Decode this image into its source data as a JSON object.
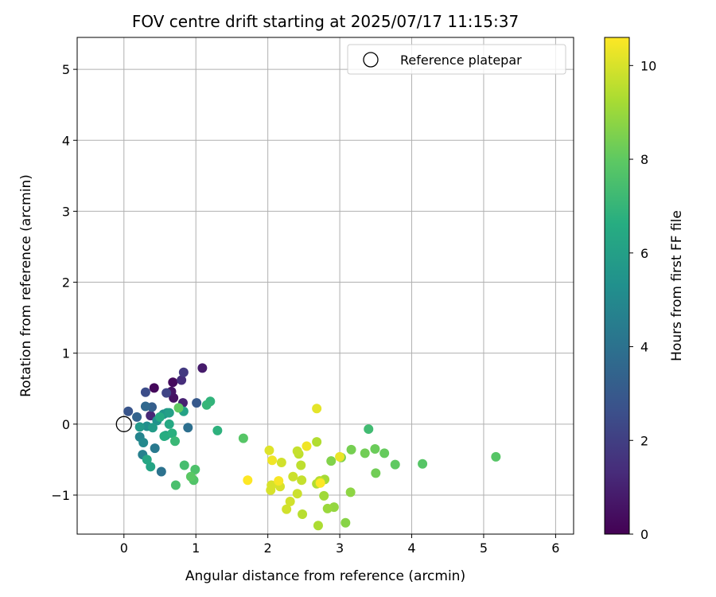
{
  "chart_data": {
    "type": "scatter",
    "title": "FOV centre drift starting at 2025/07/17 11:15:37",
    "xlabel": "Angular distance from reference (arcmin)",
    "ylabel": "Rotation from reference (arcmin)",
    "xlim": [
      -0.65,
      6.25
    ],
    "ylim": [
      -1.55,
      5.45
    ],
    "xticks": [
      0,
      1,
      2,
      3,
      4,
      5,
      6
    ],
    "yticks": [
      -1,
      0,
      1,
      2,
      3,
      4,
      5
    ],
    "grid": true,
    "legend": {
      "position": "top-right",
      "entries": [
        "Reference platepar"
      ]
    },
    "reference_point": {
      "x": 0,
      "y": 0,
      "label": "Reference platepar"
    },
    "colorbar": {
      "label": "Hours from first FF file",
      "min": 0,
      "max": 10.6,
      "ticks": [
        0,
        2,
        4,
        6,
        8,
        10
      ],
      "colormap": "viridis"
    },
    "points": [
      {
        "x": 0.42,
        "y": 0.51,
        "t": 0.2
      },
      {
        "x": 0.68,
        "y": 0.59,
        "t": 0.3
      },
      {
        "x": 0.69,
        "y": 0.37,
        "t": 0.5
      },
      {
        "x": 0.66,
        "y": 0.46,
        "t": 0.6
      },
      {
        "x": 1.09,
        "y": 0.79,
        "t": 0.8
      },
      {
        "x": 0.82,
        "y": 0.3,
        "t": 1.0
      },
      {
        "x": 0.37,
        "y": 0.12,
        "t": 1.2
      },
      {
        "x": 0.8,
        "y": 0.62,
        "t": 1.4
      },
      {
        "x": 0.83,
        "y": 0.73,
        "t": 1.8
      },
      {
        "x": 0.59,
        "y": 0.44,
        "t": 2.2
      },
      {
        "x": 0.3,
        "y": 0.45,
        "t": 2.5
      },
      {
        "x": 0.06,
        "y": 0.18,
        "t": 2.8
      },
      {
        "x": 1.01,
        "y": 0.3,
        "t": 3.0
      },
      {
        "x": 0.39,
        "y": 0.24,
        "t": 3.2
      },
      {
        "x": 0.18,
        "y": 0.1,
        "t": 3.4
      },
      {
        "x": 0.3,
        "y": 0.25,
        "t": 3.6
      },
      {
        "x": 0.89,
        "y": -0.05,
        "t": 3.9
      },
      {
        "x": 0.52,
        "y": -0.67,
        "t": 4.0
      },
      {
        "x": 0.43,
        "y": -0.34,
        "t": 4.3
      },
      {
        "x": 0.26,
        "y": -0.43,
        "t": 4.6
      },
      {
        "x": 0.22,
        "y": -0.18,
        "t": 4.8
      },
      {
        "x": 0.27,
        "y": -0.26,
        "t": 5.0
      },
      {
        "x": 0.32,
        "y": -0.03,
        "t": 5.2
      },
      {
        "x": 0.46,
        "y": 0.05,
        "t": 5.4
      },
      {
        "x": 0.55,
        "y": 0.14,
        "t": 5.5
      },
      {
        "x": 0.6,
        "y": 0.16,
        "t": 5.6
      },
      {
        "x": 0.22,
        "y": -0.04,
        "t": 5.7
      },
      {
        "x": 0.4,
        "y": -0.05,
        "t": 5.8
      },
      {
        "x": 0.58,
        "y": -0.16,
        "t": 5.9
      },
      {
        "x": 0.63,
        "y": 0.16,
        "t": 6.0
      },
      {
        "x": 0.83,
        "y": 0.18,
        "t": 6.1
      },
      {
        "x": 0.37,
        "y": -0.6,
        "t": 6.2
      },
      {
        "x": 0.32,
        "y": -0.5,
        "t": 6.3
      },
      {
        "x": 0.63,
        "y": 0.0,
        "t": 6.4
      },
      {
        "x": 0.5,
        "y": 0.1,
        "t": 6.5
      },
      {
        "x": 0.56,
        "y": -0.17,
        "t": 6.6
      },
      {
        "x": 0.67,
        "y": -0.13,
        "t": 6.7
      },
      {
        "x": 1.3,
        "y": -0.09,
        "t": 6.8
      },
      {
        "x": 1.2,
        "y": 0.32,
        "t": 6.9
      },
      {
        "x": 1.15,
        "y": 0.27,
        "t": 7.0
      },
      {
        "x": 0.71,
        "y": -0.24,
        "t": 7.1
      },
      {
        "x": 3.4,
        "y": -0.07,
        "t": 7.3
      },
      {
        "x": 0.84,
        "y": -0.58,
        "t": 7.4
      },
      {
        "x": 0.72,
        "y": -0.86,
        "t": 7.5
      },
      {
        "x": 0.99,
        "y": -0.64,
        "t": 7.6
      },
      {
        "x": 0.97,
        "y": -0.79,
        "t": 7.7
      },
      {
        "x": 1.66,
        "y": -0.2,
        "t": 7.8
      },
      {
        "x": 0.93,
        "y": -0.74,
        "t": 7.9
      },
      {
        "x": 0.76,
        "y": 0.23,
        "t": 8.0
      },
      {
        "x": 5.17,
        "y": -0.46,
        "t": 7.8
      },
      {
        "x": 4.15,
        "y": -0.56,
        "t": 7.8
      },
      {
        "x": 3.77,
        "y": -0.57,
        "t": 8.0
      },
      {
        "x": 3.62,
        "y": -0.41,
        "t": 8.1
      },
      {
        "x": 3.49,
        "y": -0.35,
        "t": 8.2
      },
      {
        "x": 3.5,
        "y": -0.69,
        "t": 8.3
      },
      {
        "x": 3.35,
        "y": -0.41,
        "t": 8.3
      },
      {
        "x": 3.16,
        "y": -0.36,
        "t": 8.4
      },
      {
        "x": 3.02,
        "y": -0.47,
        "t": 8.5
      },
      {
        "x": 2.88,
        "y": -0.52,
        "t": 8.6
      },
      {
        "x": 3.08,
        "y": -1.39,
        "t": 8.7
      },
      {
        "x": 3.15,
        "y": -0.96,
        "t": 8.8
      },
      {
        "x": 2.92,
        "y": -1.17,
        "t": 8.9
      },
      {
        "x": 2.83,
        "y": -1.19,
        "t": 9.0
      },
      {
        "x": 2.78,
        "y": -1.01,
        "t": 9.1
      },
      {
        "x": 2.79,
        "y": -0.78,
        "t": 9.2
      },
      {
        "x": 2.7,
        "y": -1.43,
        "t": 9.3
      },
      {
        "x": 2.68,
        "y": -0.25,
        "t": 9.4
      },
      {
        "x": 2.68,
        "y": -0.84,
        "t": 9.4
      },
      {
        "x": 2.72,
        "y": -0.8,
        "t": 9.5
      },
      {
        "x": 2.48,
        "y": -1.27,
        "t": 9.5
      },
      {
        "x": 2.46,
        "y": -0.58,
        "t": 9.6
      },
      {
        "x": 2.43,
        "y": -0.42,
        "t": 9.6
      },
      {
        "x": 2.41,
        "y": -0.38,
        "t": 9.7
      },
      {
        "x": 2.47,
        "y": -0.79,
        "t": 9.7
      },
      {
        "x": 2.41,
        "y": -0.98,
        "t": 9.8
      },
      {
        "x": 2.35,
        "y": -0.74,
        "t": 9.8
      },
      {
        "x": 2.31,
        "y": -1.09,
        "t": 9.9
      },
      {
        "x": 2.26,
        "y": -1.2,
        "t": 9.9
      },
      {
        "x": 2.19,
        "y": -0.54,
        "t": 9.9
      },
      {
        "x": 2.17,
        "y": -0.88,
        "t": 10.0
      },
      {
        "x": 2.05,
        "y": -0.86,
        "t": 10.0
      },
      {
        "x": 2.04,
        "y": -0.93,
        "t": 10.0
      },
      {
        "x": 2.02,
        "y": -0.37,
        "t": 10.1
      },
      {
        "x": 2.68,
        "y": 0.22,
        "t": 10.2
      },
      {
        "x": 3.0,
        "y": -0.46,
        "t": 10.3
      },
      {
        "x": 2.54,
        "y": -0.31,
        "t": 10.4
      },
      {
        "x": 2.06,
        "y": -0.51,
        "t": 10.4
      },
      {
        "x": 2.15,
        "y": -0.8,
        "t": 10.5
      },
      {
        "x": 1.72,
        "y": -0.79,
        "t": 10.6
      },
      {
        "x": 2.73,
        "y": -0.83,
        "t": 10.6
      }
    ]
  }
}
